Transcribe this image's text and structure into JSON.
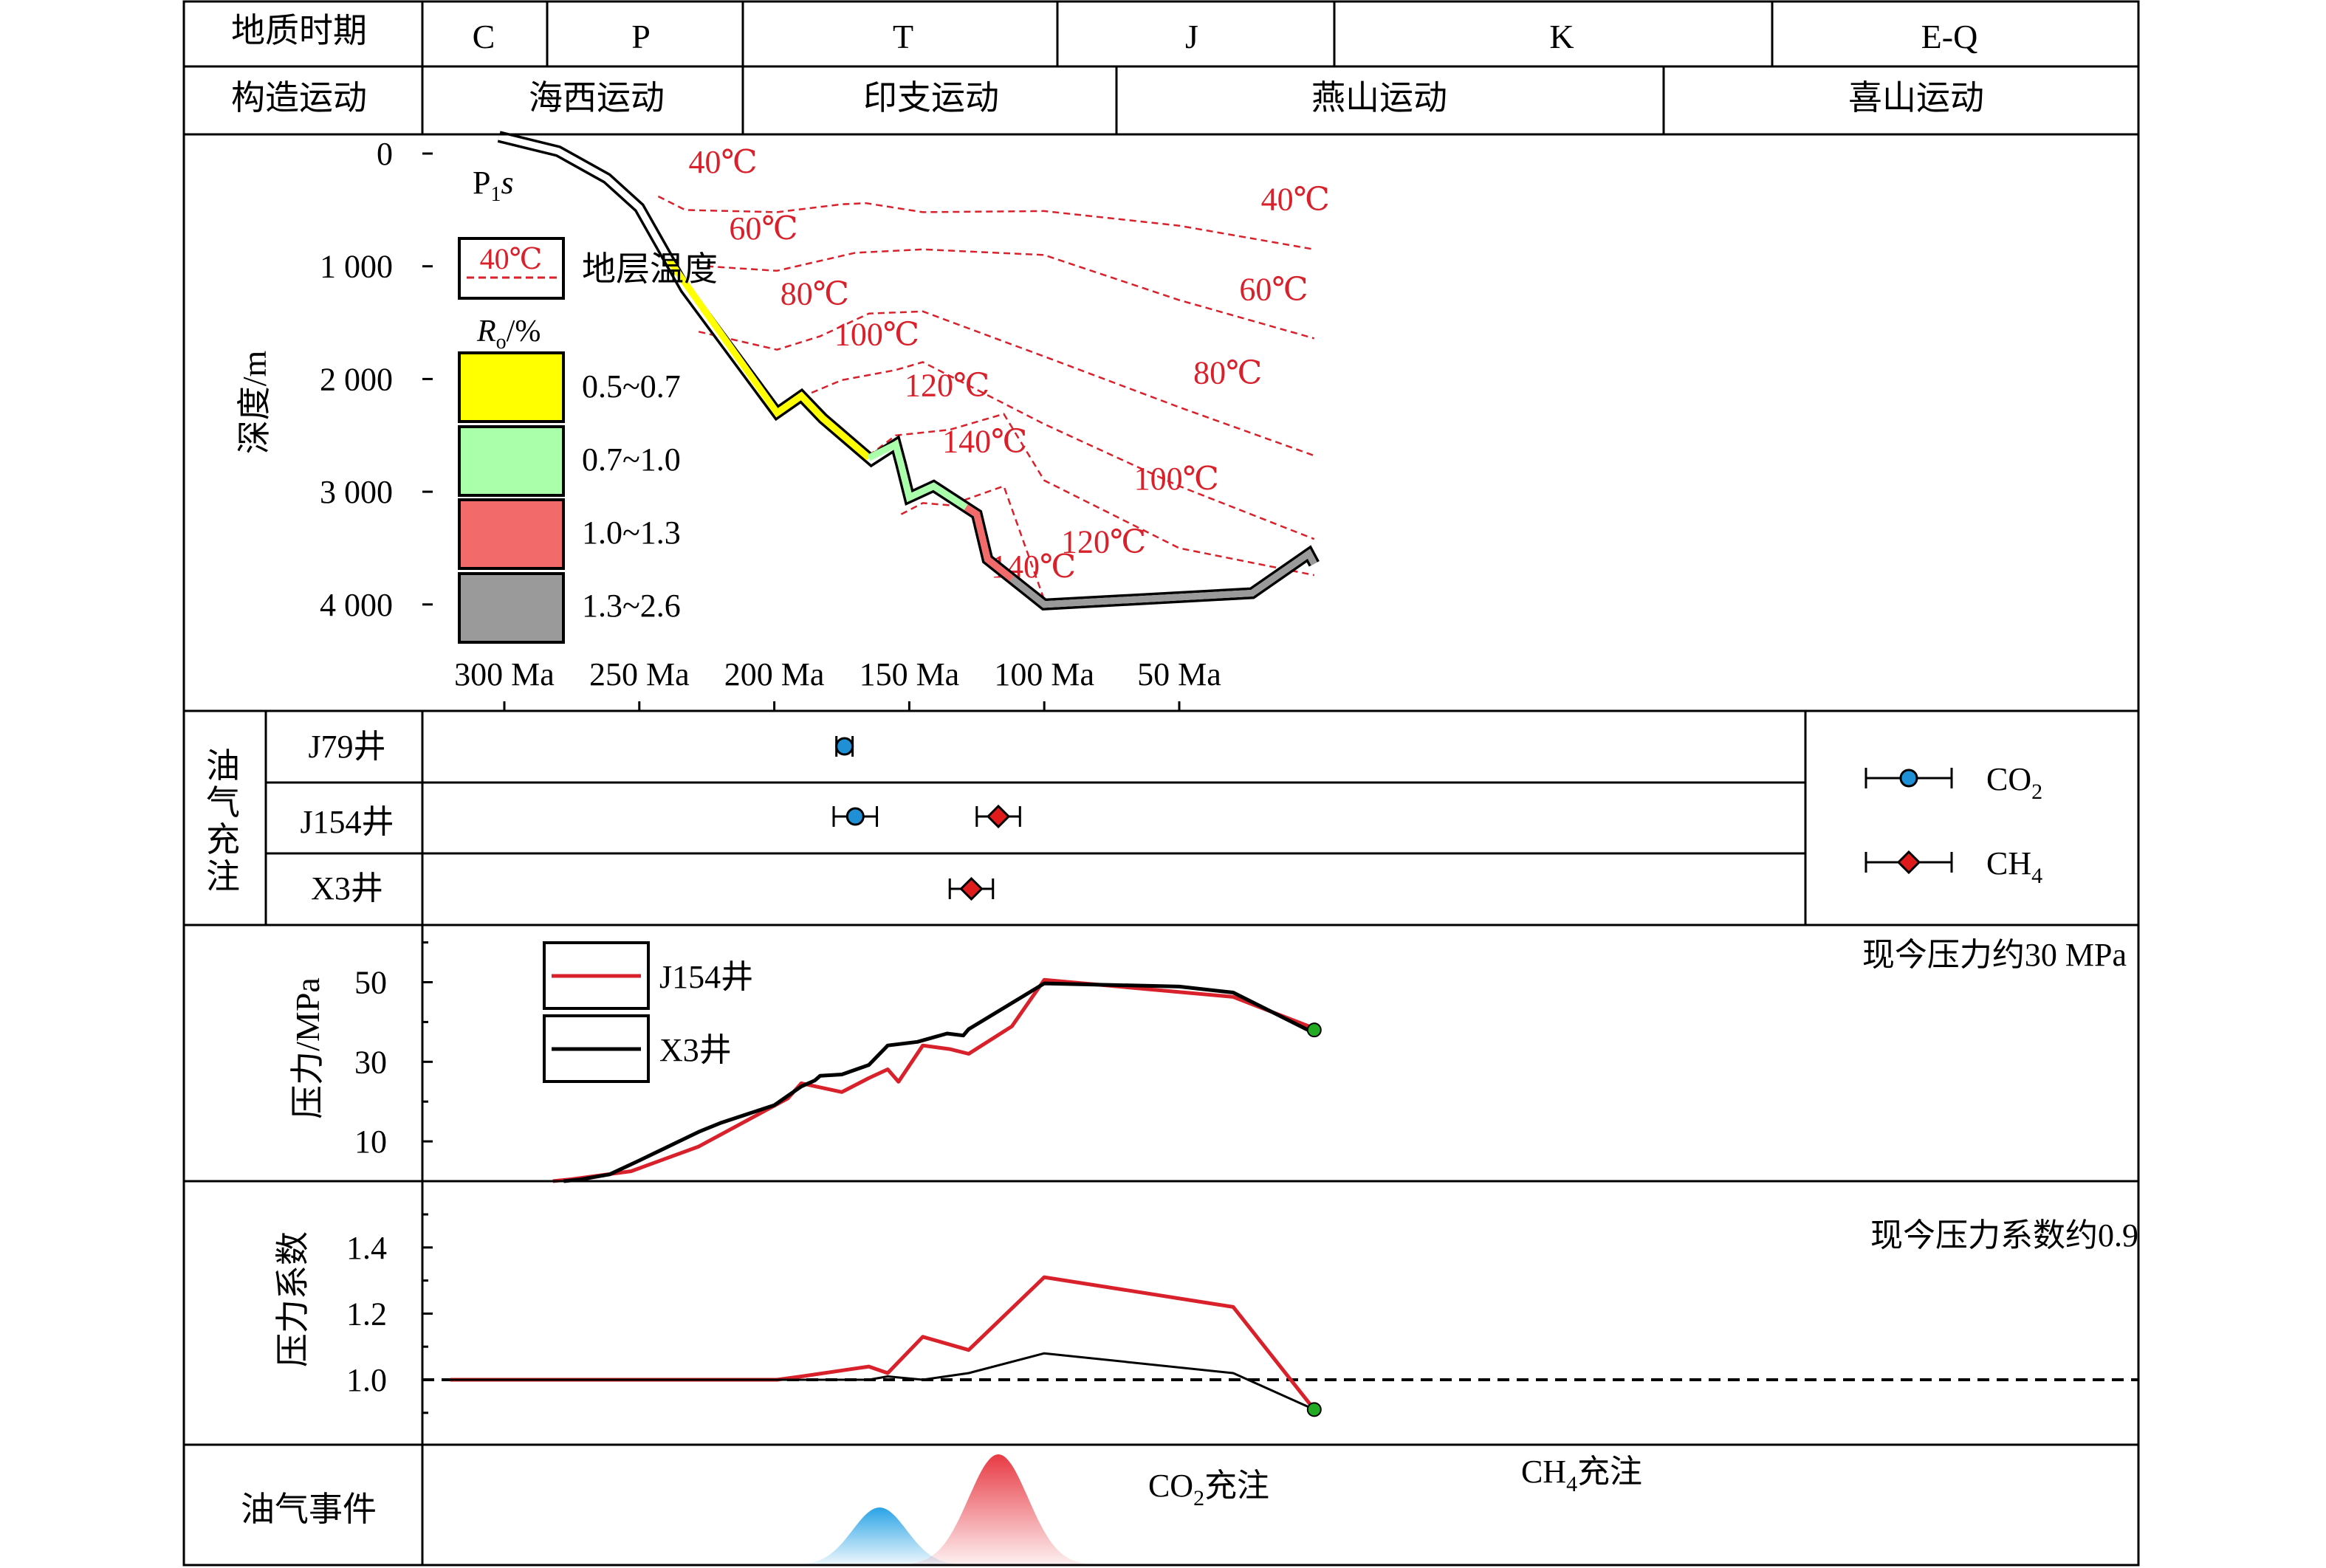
{
  "header": {
    "period_label": "地质时期",
    "periods": [
      "C",
      "P",
      "T",
      "J",
      "K",
      "E-Q"
    ],
    "tectonic_label": "构造运动",
    "movements": [
      "海西运动",
      "印支运动",
      "燕山运动",
      "喜山运动"
    ]
  },
  "chart_data": [
    {
      "type": "line",
      "panel": "burial-history",
      "ylabel": "深度/m",
      "y_unit": "m",
      "ylim": [
        0,
        4500
      ],
      "xlim": [
        320,
        0
      ],
      "x_unit": "Ma",
      "yticks": [
        0,
        1000,
        2000,
        3000,
        4000
      ],
      "ytick_labels": [
        "0",
        "1 000",
        "2 000",
        "3 000",
        "4 000"
      ],
      "xticks": [
        300,
        250,
        200,
        150,
        100,
        50
      ],
      "xtick_labels": [
        "300 Ma",
        "250 Ma",
        "200 Ma",
        "150 Ma",
        "100 Ma",
        "50 Ma"
      ],
      "formation_label": "P",
      "formation_sub": "1",
      "formation_suffix": "s",
      "burial_curve": {
        "x": [
          302,
          280,
          262,
          250,
          233,
          199,
          190,
          182,
          164,
          155,
          153,
          150,
          141,
          125,
          121,
          100,
          23,
          2,
          0
        ],
        "y": [
          -150,
          -20,
          220,
          480,
          1200,
          2300,
          2150,
          2350,
          2720,
          2580,
          2760,
          3050,
          2950,
          3200,
          3600,
          4000,
          3900,
          3550,
          3640
        ]
      },
      "ro_segments": [
        {
          "range": "0.5~0.7",
          "color": "#ffff00",
          "x": [
            239,
            199,
            190,
            182,
            165
          ]
        },
        {
          "range": "0.7~1.0",
          "color": "#aaffaa",
          "x": [
            165,
            155,
            153,
            150,
            141,
            129
          ]
        },
        {
          "range": "1.0~1.3",
          "color": "#f36a6a",
          "x": [
            129,
            125,
            121,
            112
          ]
        },
        {
          "range": "1.3~2.6",
          "color": "#9a9a9a",
          "x": [
            112,
            100,
            23,
            2,
            0
          ]
        }
      ],
      "legend": {
        "temp_sample": "40℃",
        "temp_label": "地层温度",
        "ro_title_r": "R",
        "ro_title_sub": "o",
        "ro_title_unit": "/%",
        "ro_ranges": [
          "0.5~0.7",
          "0.7~1.0",
          "1.0~1.3",
          "1.3~2.6"
        ],
        "ro_colors": [
          "#ffff00",
          "#aaffaa",
          "#f36a6a",
          "#9a9a9a"
        ]
      },
      "isotherms": [
        {
          "label": "40℃",
          "x": [
            243,
            233,
            199,
            175,
            166,
            145,
            100,
            50,
            0
          ],
          "y": [
            380,
            500,
            520,
            450,
            440,
            520,
            510,
            640,
            850
          ]
        },
        {
          "label": "60℃",
          "x": [
            225,
            199,
            170,
            145,
            100,
            50,
            0
          ],
          "y": [
            1000,
            1040,
            880,
            850,
            900,
            1300,
            1640
          ]
        },
        {
          "label": "80℃",
          "x": [
            228,
            199,
            183,
            165,
            145,
            100,
            50,
            0
          ],
          "y": [
            1580,
            1740,
            1620,
            1420,
            1400,
            1800,
            2250,
            2680
          ]
        },
        {
          "label": "100℃",
          "x": [
            190,
            175,
            155,
            145,
            100,
            50,
            0
          ],
          "y": [
            2160,
            2010,
            1920,
            1850,
            2400,
            2950,
            3420
          ]
        },
        {
          "label": "120℃",
          "x": [
            165,
            155,
            135,
            115,
            100,
            50,
            0
          ],
          "y": [
            2680,
            2500,
            2450,
            2310,
            2900,
            3500,
            3740
          ]
        },
        {
          "label": "140℃",
          "x": [
            153,
            145,
            135,
            115,
            100
          ],
          "y": [
            3200,
            3100,
            3120,
            2950,
            3960
          ]
        }
      ],
      "isotherm_labels": [
        {
          "label": "40℃",
          "x": 219,
          "y": 170
        },
        {
          "label": "40℃",
          "x": 7,
          "y": 500
        },
        {
          "label": "60℃",
          "x": 204,
          "y": 760
        },
        {
          "label": "60℃",
          "x": 15,
          "y": 1300
        },
        {
          "label": "80℃",
          "x": 185,
          "y": 1340
        },
        {
          "label": "80℃",
          "x": 32,
          "y": 2040
        },
        {
          "label": "100℃",
          "x": 162,
          "y": 1700
        },
        {
          "label": "100℃",
          "x": 51,
          "y": 2980
        },
        {
          "label": "120℃",
          "x": 136,
          "y": 2150
        },
        {
          "label": "120℃",
          "x": 78,
          "y": 3540
        },
        {
          "label": "140℃",
          "x": 122,
          "y": 2650
        },
        {
          "label": "140℃",
          "x": 104,
          "y": 3760
        }
      ]
    },
    {
      "type": "scatter",
      "panel": "hydrocarbon-charging",
      "side_label": [
        "油",
        "气",
        "充",
        "注"
      ],
      "wells": [
        "J79井",
        "J154井",
        "X3井"
      ],
      "points": [
        {
          "well": "J79井",
          "fluid": "CO2",
          "age": 174,
          "age_min": 171,
          "age_max": 177
        },
        {
          "well": "J154井",
          "fluid": "CO2",
          "age": 170,
          "age_min": 162,
          "age_max": 178
        },
        {
          "well": "J154井",
          "fluid": "CH4",
          "age": 117,
          "age_min": 109,
          "age_max": 125
        },
        {
          "well": "X3井",
          "fluid": "CH4",
          "age": 127,
          "age_min": 119,
          "age_max": 135
        }
      ],
      "legend": [
        {
          "fluid": "CO2",
          "label": "CO",
          "sub": "2",
          "color": "#1f8fd6",
          "marker": "circle"
        },
        {
          "fluid": "CH4",
          "label": "CH",
          "sub": "4",
          "color": "#e01b1b",
          "marker": "diamond"
        }
      ]
    },
    {
      "type": "line",
      "panel": "pressure",
      "ylabel": "压力/MPa",
      "yticks": [
        10,
        30,
        50
      ],
      "ytick_labels": [
        "10",
        "30",
        "50"
      ],
      "ylim": [
        0,
        62
      ],
      "annotation": "现今压力约30 MPa",
      "series": [
        {
          "name": "J154井",
          "color": "#d9212b",
          "x": [
            282,
            275,
            253,
            228,
            195,
            190,
            175,
            165,
            158,
            158,
            154,
            145,
            135,
            128,
            112,
            100,
            30,
            0
          ],
          "y": [
            0,
            0.5,
            2.5,
            8.7,
            20.8,
            24.6,
            22.4,
            25.9,
            28.1,
            28.1,
            25.0,
            34.1,
            33.2,
            32.0,
            38.9,
            50.6,
            46.3,
            38.4
          ]
        },
        {
          "name": "X3井",
          "color": "#000000",
          "x": [
            278,
            272,
            261,
            250,
            228,
            220,
            200,
            190,
            185,
            183,
            175,
            165,
            158,
            147,
            136,
            130,
            128,
            100,
            50,
            30,
            0
          ],
          "y": [
            0,
            0.4,
            1.7,
            5.2,
            12.4,
            14.6,
            19.1,
            23.8,
            25.3,
            26.5,
            26.8,
            29.2,
            34.1,
            35.0,
            37.1,
            36.6,
            38.2,
            49.7,
            48.9,
            47.4,
            37.2
          ]
        }
      ],
      "end_marker": {
        "x": 0,
        "y": 38,
        "color": "#22aa22"
      }
    },
    {
      "type": "line",
      "panel": "pressure-coefficient",
      "ylabel": "压力系数",
      "yticks": [
        1.0,
        1.2,
        1.4
      ],
      "ytick_labels": [
        "1.0",
        "1.2",
        "1.4"
      ],
      "ylim": [
        0.8,
        1.5
      ],
      "baseline": 1.0,
      "annotation": "现今压力系数约0.9",
      "series": [
        {
          "name": "J154井",
          "color": "#d9212b",
          "x": [
            320,
            199,
            190,
            165,
            158,
            145,
            128,
            100,
            30,
            0
          ],
          "y": [
            1.0,
            1.0,
            1.01,
            1.04,
            1.02,
            1.13,
            1.09,
            1.31,
            1.22,
            0.91
          ]
        },
        {
          "name": "X3井",
          "color": "#000000",
          "x": [
            320,
            199,
            190,
            165,
            158,
            145,
            128,
            100,
            30,
            0
          ],
          "y": [
            1.0,
            1.0,
            1.0,
            1.0,
            1.01,
            1.0,
            1.02,
            1.08,
            1.02,
            0.91
          ]
        }
      ],
      "end_marker": {
        "x": 0,
        "y": 0.91,
        "color": "#22aa22"
      }
    },
    {
      "type": "area",
      "panel": "hydrocarbon-events",
      "title": "油气事件",
      "events": [
        {
          "name": "CO2",
          "label_main": "CO",
          "label_sub": "2",
          "label_suffix": "充注",
          "peak_age": 161,
          "half_width": 10,
          "peak_height": 0.52,
          "color": "#2aa3e6"
        },
        {
          "name": "CH4",
          "label_main": "CH",
          "label_sub": "4",
          "label_suffix": "充注",
          "peak_age": 117,
          "half_width": 11,
          "peak_height": 1.0,
          "color": "#e83a44"
        }
      ]
    }
  ]
}
